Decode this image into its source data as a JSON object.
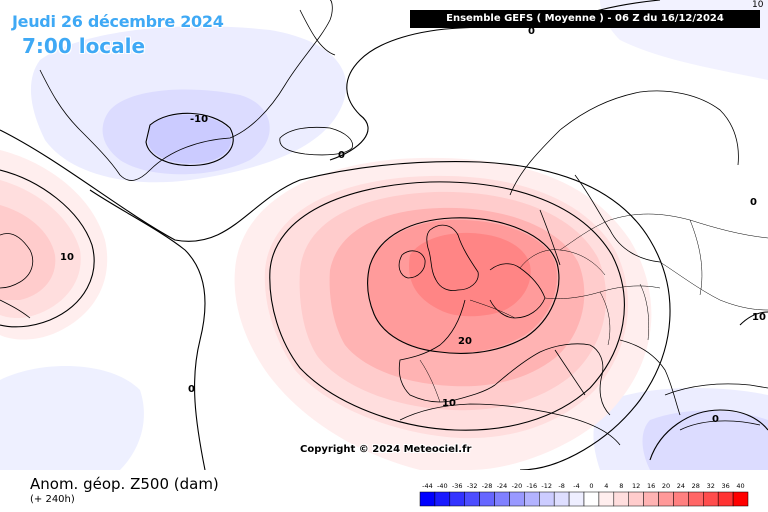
{
  "header": {
    "date": "Jeudi 26 décembre 2024",
    "local_time": "7:00 locale",
    "run_banner": "Ensemble GEFS  ( Moyenne )  -  06 Z du 16/12/2024",
    "corner_label": "10"
  },
  "footer": {
    "title": "Anom. géop. Z500 (dam)",
    "subtitle": "(+ 240h)",
    "copyright": "Copyright © 2024 Meteociel.fr"
  },
  "map": {
    "contour_labels": [
      "-10",
      "0",
      "10",
      "20",
      "0",
      "10",
      "10",
      "0",
      "0",
      "0"
    ]
  },
  "legend": {
    "ticks": [
      "-44",
      "-40",
      "-36",
      "-32",
      "-28",
      "-24",
      "-20",
      "-16",
      "-12",
      "-8",
      "-4",
      "0",
      "4",
      "8",
      "12",
      "16",
      "20",
      "24",
      "28",
      "32",
      "36",
      "40"
    ],
    "colors": [
      "#0000ff",
      "#1a1aff",
      "#3333ff",
      "#4d4dff",
      "#6666ff",
      "#8080ff",
      "#9999ff",
      "#b3b3ff",
      "#ccccff",
      "#dedeff",
      "#eeeeff",
      "#ffffff",
      "#ffeeee",
      "#ffdede",
      "#ffcccc",
      "#ffb3b3",
      "#ff9999",
      "#ff8080",
      "#ff6666",
      "#ff4d4d",
      "#ff3333",
      "#ff0000"
    ]
  }
}
